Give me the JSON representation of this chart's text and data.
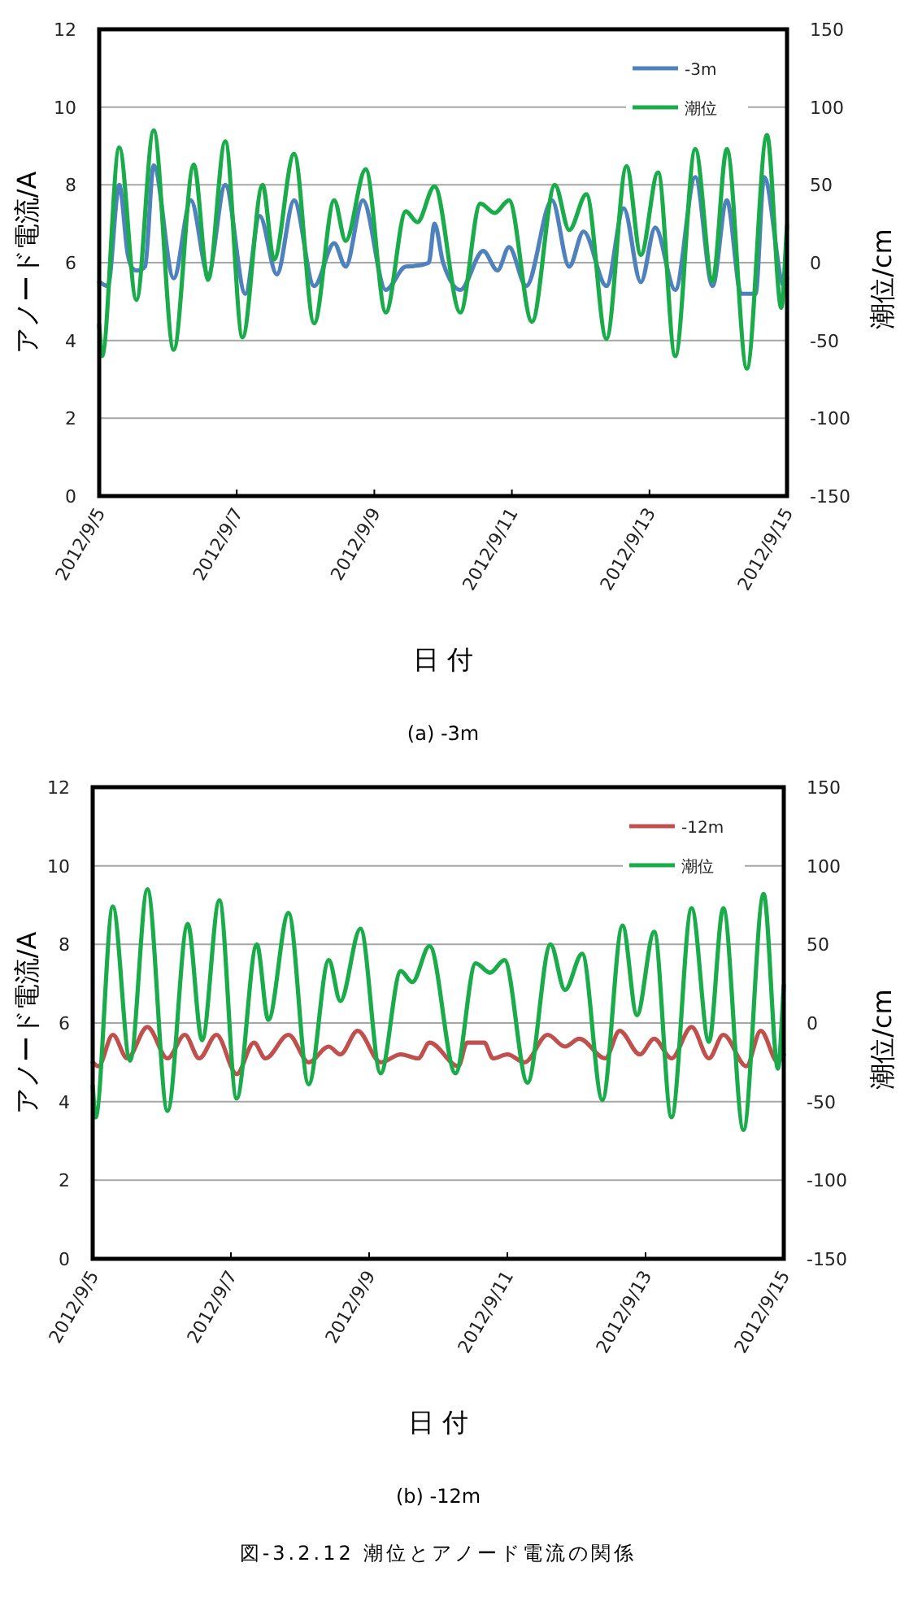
{
  "chart_data": [
    {
      "type": "line",
      "xlabel": "日 付",
      "ylabel": "アノード電流/A",
      "y2label": "潮位/cm",
      "annotations": [
        "(a)  -3m"
      ],
      "xlim": [
        "2012-09-05",
        "2012-09-15"
      ],
      "xticks": [
        {
          "value": "2012-09-05",
          "label": "2012/9/5"
        },
        {
          "value": "2012-09-07",
          "label": "2012/9/7"
        },
        {
          "value": "2012-09-09",
          "label": "2012/9/9"
        },
        {
          "value": "2012-09-11",
          "label": "2012/9/11"
        },
        {
          "value": "2012-09-13",
          "label": "2012/9/13"
        },
        {
          "value": "2012-09-15",
          "label": "2012/9/15"
        }
      ],
      "ylim": [
        0,
        12
      ],
      "yticks": [
        0,
        2,
        4,
        6,
        8,
        10,
        12
      ],
      "y2lim": [
        -150,
        150
      ],
      "y2ticks": [
        -150,
        -100,
        -50,
        0,
        50,
        100,
        150
      ],
      "grid": "y",
      "legend": "top right",
      "series": [
        {
          "name": "-3m",
          "color": "#4f81bd",
          "x": [
            "2012-09-05T00:00",
            "2012-09-05T03:00",
            "2012-09-05T07:00",
            "2012-09-05T10:00",
            "2012-09-05T13:00",
            "2012-09-05T16:00",
            "2012-09-05T19:00",
            "2012-09-06T02:00",
            "2012-09-06T08:00",
            "2012-09-06T14:00",
            "2012-09-06T20:00",
            "2012-09-07T03:00",
            "2012-09-07T08:00",
            "2012-09-07T14:00",
            "2012-09-07T20:00",
            "2012-09-08T03:00",
            "2012-09-08T10:00",
            "2012-09-08T14:00",
            "2012-09-08T20:00",
            "2012-09-09T04:00",
            "2012-09-09T11:00",
            "2012-09-09T19:00",
            "2012-09-09T21:00",
            "2012-09-10T00:00",
            "2012-09-10T06:00",
            "2012-09-10T14:00",
            "2012-09-10T19:00",
            "2012-09-10T23:00",
            "2012-09-11T05:00",
            "2012-09-11T14:00",
            "2012-09-11T20:00",
            "2012-09-12T01:00",
            "2012-09-12T09:00",
            "2012-09-12T15:00",
            "2012-09-12T21:00",
            "2012-09-13T02:00",
            "2012-09-13T09:00",
            "2012-09-13T16:00",
            "2012-09-13T22:00",
            "2012-09-14T03:00",
            "2012-09-14T08:00",
            "2012-09-14T13:00",
            "2012-09-14T16:00",
            "2012-09-14T23:00",
            "2012-09-15T00:00"
          ],
          "values": [
            5.5,
            5.4,
            8.0,
            6.2,
            5.8,
            5.9,
            8.5,
            5.6,
            7.6,
            5.7,
            8.0,
            5.2,
            7.2,
            5.7,
            7.6,
            5.4,
            6.5,
            5.9,
            7.6,
            5.3,
            5.9,
            6.0,
            7.0,
            6.0,
            5.3,
            6.3,
            5.8,
            6.4,
            5.4,
            7.6,
            5.9,
            6.8,
            5.4,
            7.4,
            5.5,
            6.9,
            5.3,
            8.2,
            5.4,
            7.6,
            5.2,
            5.2,
            8.2,
            5.4,
            5.6
          ]
        },
        {
          "name": "潮位",
          "color": "#1aab4a",
          "axis": "y2",
          "x": [
            "2012-09-05T00:00",
            "2012-09-05T01:00",
            "2012-09-05T07:00",
            "2012-09-05T13:00",
            "2012-09-05T19:00",
            "2012-09-06T02:00",
            "2012-09-06T09:00",
            "2012-09-06T14:00",
            "2012-09-06T20:00",
            "2012-09-07T02:00",
            "2012-09-07T09:00",
            "2012-09-07T13:00",
            "2012-09-07T20:00",
            "2012-09-08T03:00",
            "2012-09-08T10:00",
            "2012-09-08T14:00",
            "2012-09-08T21:00",
            "2012-09-09T04:00",
            "2012-09-09T11:00",
            "2012-09-09T15:00",
            "2012-09-09T21:00",
            "2012-09-10T06:00",
            "2012-09-10T13:00",
            "2012-09-10T18:00",
            "2012-09-10T23:00",
            "2012-09-11T07:00",
            "2012-09-11T15:00",
            "2012-09-11T20:00",
            "2012-09-12T02:00",
            "2012-09-12T09:00",
            "2012-09-12T16:00",
            "2012-09-12T21:00",
            "2012-09-13T03:00",
            "2012-09-13T09:00",
            "2012-09-13T16:00",
            "2012-09-13T22:00",
            "2012-09-14T03:00",
            "2012-09-14T10:00",
            "2012-09-14T17:00",
            "2012-09-14T22:00",
            "2012-09-15T00:00"
          ],
          "values": [
            -40,
            -60,
            74,
            -24,
            85,
            -56,
            63,
            -11,
            78,
            -48,
            50,
            2,
            70,
            -39,
            40,
            14,
            60,
            -32,
            33,
            26,
            49,
            -32,
            38,
            32,
            40,
            -38,
            50,
            21,
            44,
            -49,
            62,
            5,
            58,
            -60,
            73,
            -12,
            73,
            -68,
            82,
            -29,
            24
          ]
        }
      ]
    },
    {
      "type": "line",
      "xlabel": "日 付",
      "ylabel": "アノード電流/A",
      "y2label": "潮位/cm",
      "annotations": [
        "(b)  -12m",
        "図-3.2.12  潮位とアノード電流の関係"
      ],
      "xlim": [
        "2012-09-05",
        "2012-09-15"
      ],
      "xticks": [
        {
          "value": "2012-09-05",
          "label": "2012/9/5"
        },
        {
          "value": "2012-09-07",
          "label": "2012/9/7"
        },
        {
          "value": "2012-09-09",
          "label": "2012/9/9"
        },
        {
          "value": "2012-09-11",
          "label": "2012/9/11"
        },
        {
          "value": "2012-09-13",
          "label": "2012/9/13"
        },
        {
          "value": "2012-09-15",
          "label": "2012/9/15"
        }
      ],
      "ylim": [
        0,
        12
      ],
      "yticks": [
        0,
        2,
        4,
        6,
        8,
        10,
        12
      ],
      "y2lim": [
        -150,
        150
      ],
      "y2ticks": [
        -150,
        -100,
        -50,
        0,
        50,
        100,
        150
      ],
      "grid": "y",
      "legend": "top right",
      "series": [
        {
          "name": "-12m",
          "color": "#c0504d",
          "x": [
            "2012-09-05T00:00",
            "2012-09-05T02:00",
            "2012-09-05T07:00",
            "2012-09-05T12:00",
            "2012-09-05T19:00",
            "2012-09-06T02:00",
            "2012-09-06T08:00",
            "2012-09-06T13:00",
            "2012-09-06T19:00",
            "2012-09-07T02:00",
            "2012-09-07T08:00",
            "2012-09-07T12:00",
            "2012-09-07T20:00",
            "2012-09-08T03:00",
            "2012-09-08T10:00",
            "2012-09-08T14:00",
            "2012-09-08T20:00",
            "2012-09-09T04:00",
            "2012-09-09T11:00",
            "2012-09-09T17:00",
            "2012-09-09T21:00",
            "2012-09-10T07:00",
            "2012-09-10T10:00",
            "2012-09-10T16:00",
            "2012-09-10T19:00",
            "2012-09-11T00:00",
            "2012-09-11T06:00",
            "2012-09-11T14:00",
            "2012-09-11T20:00",
            "2012-09-12T01:00",
            "2012-09-12T10:00",
            "2012-09-12T15:00",
            "2012-09-12T22:00",
            "2012-09-13T03:00",
            "2012-09-13T09:00",
            "2012-09-13T16:00",
            "2012-09-13T22:00",
            "2012-09-14T03:00",
            "2012-09-14T11:00",
            "2012-09-14T16:00",
            "2012-09-14T22:00",
            "2012-09-15T00:00"
          ],
          "values": [
            5.0,
            4.9,
            5.7,
            5.1,
            5.9,
            5.1,
            5.7,
            5.1,
            5.7,
            4.7,
            5.5,
            5.1,
            5.7,
            5.0,
            5.4,
            5.2,
            5.8,
            5.0,
            5.2,
            5.1,
            5.5,
            4.9,
            5.5,
            5.5,
            5.1,
            5.2,
            5.0,
            5.7,
            5.4,
            5.6,
            5.1,
            5.8,
            5.2,
            5.6,
            5.1,
            5.9,
            5.1,
            5.7,
            4.9,
            5.8,
            5.0,
            5.2
          ]
        },
        {
          "name": "潮位",
          "color": "#1aab4a",
          "axis": "y2",
          "x": [
            "2012-09-05T00:00",
            "2012-09-05T01:00",
            "2012-09-05T07:00",
            "2012-09-05T13:00",
            "2012-09-05T19:00",
            "2012-09-06T02:00",
            "2012-09-06T09:00",
            "2012-09-06T14:00",
            "2012-09-06T20:00",
            "2012-09-07T02:00",
            "2012-09-07T09:00",
            "2012-09-07T13:00",
            "2012-09-07T20:00",
            "2012-09-08T03:00",
            "2012-09-08T10:00",
            "2012-09-08T14:00",
            "2012-09-08T21:00",
            "2012-09-09T04:00",
            "2012-09-09T11:00",
            "2012-09-09T15:00",
            "2012-09-09T21:00",
            "2012-09-10T06:00",
            "2012-09-10T13:00",
            "2012-09-10T18:00",
            "2012-09-10T23:00",
            "2012-09-11T07:00",
            "2012-09-11T15:00",
            "2012-09-11T20:00",
            "2012-09-12T02:00",
            "2012-09-12T09:00",
            "2012-09-12T16:00",
            "2012-09-12T21:00",
            "2012-09-13T03:00",
            "2012-09-13T09:00",
            "2012-09-13T16:00",
            "2012-09-13T22:00",
            "2012-09-14T03:00",
            "2012-09-14T10:00",
            "2012-09-14T17:00",
            "2012-09-14T22:00",
            "2012-09-15T00:00"
          ],
          "values": [
            -40,
            -60,
            74,
            -24,
            85,
            -56,
            63,
            -11,
            78,
            -48,
            50,
            2,
            70,
            -39,
            40,
            14,
            60,
            -32,
            33,
            26,
            49,
            -32,
            38,
            32,
            40,
            -38,
            50,
            21,
            44,
            -49,
            62,
            5,
            58,
            -60,
            73,
            -12,
            73,
            -68,
            82,
            -29,
            24
          ]
        }
      ]
    }
  ]
}
